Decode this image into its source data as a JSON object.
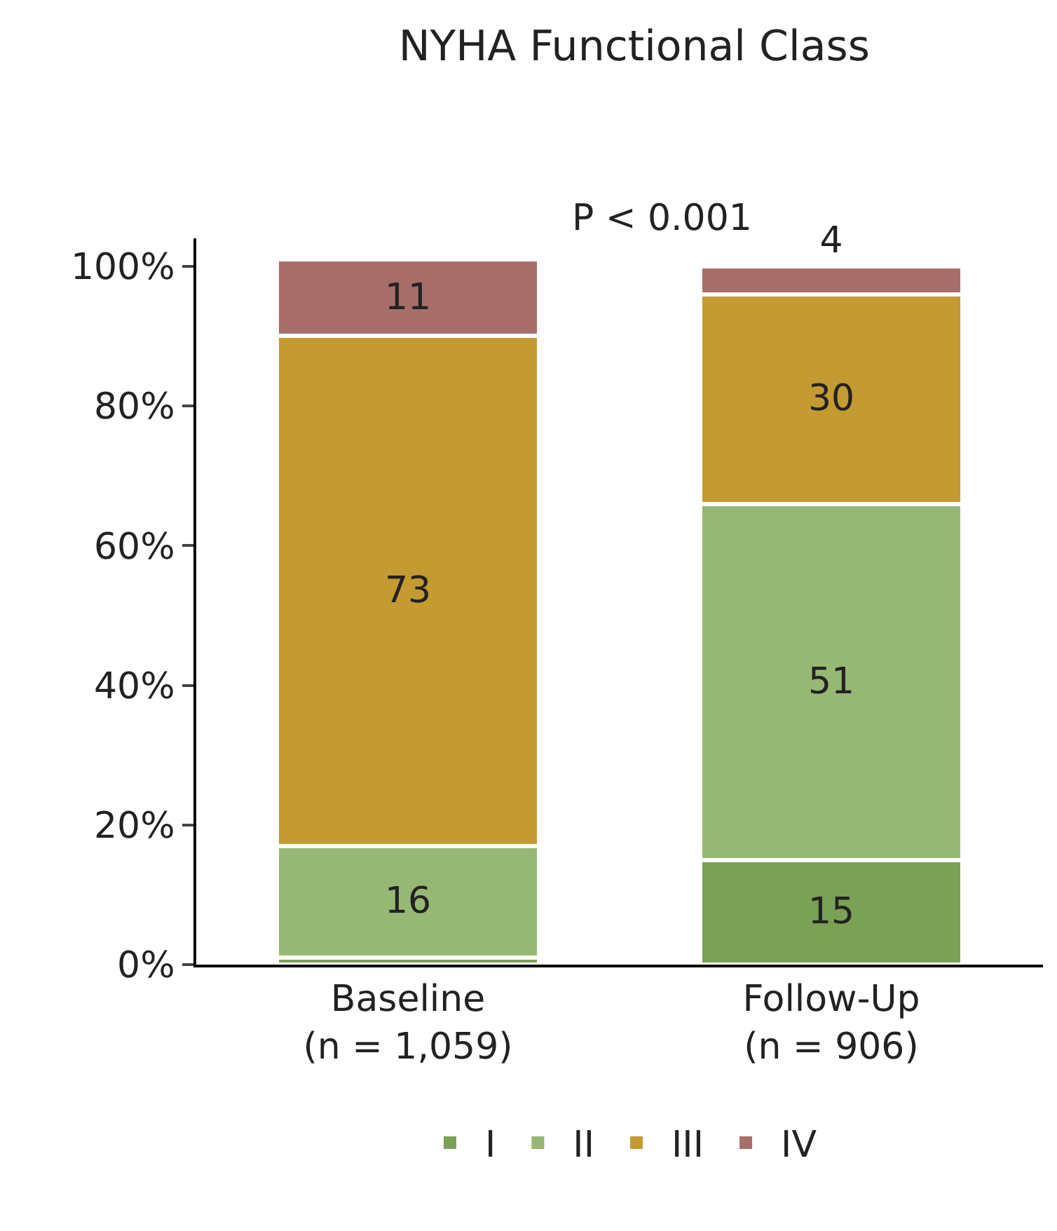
{
  "chart_data": {
    "type": "bar",
    "stacked": true,
    "title": "NYHA Functional Class",
    "annotations": [
      "P < 0.001"
    ],
    "categories": [
      "Baseline\n(n = 1,059)",
      "Follow-Up\n(n = 906)"
    ],
    "series": [
      {
        "name": "I",
        "color": "#7ba155",
        "values": [
          1,
          15
        ],
        "value_labels": [
          null,
          "15"
        ]
      },
      {
        "name": "II",
        "color": "#97b874",
        "values": [
          16,
          51
        ],
        "value_labels": [
          "16",
          "51"
        ]
      },
      {
        "name": "III",
        "color": "#c49a32",
        "values": [
          73,
          30
        ],
        "value_labels": [
          "73",
          "30"
        ]
      },
      {
        "name": "IV",
        "color": "#a86e6a",
        "values": [
          11,
          4
        ],
        "value_labels": [
          "11",
          "4"
        ]
      }
    ],
    "ylim": [
      0,
      104
    ],
    "yticks": [
      {
        "value": 0,
        "label": "0%"
      },
      {
        "value": 20,
        "label": "20%"
      },
      {
        "value": 40,
        "label": "40%"
      },
      {
        "value": 60,
        "label": "60%"
      },
      {
        "value": 80,
        "label": "80%"
      },
      {
        "value": 100,
        "label": "100%"
      }
    ],
    "legend": "bottom"
  }
}
